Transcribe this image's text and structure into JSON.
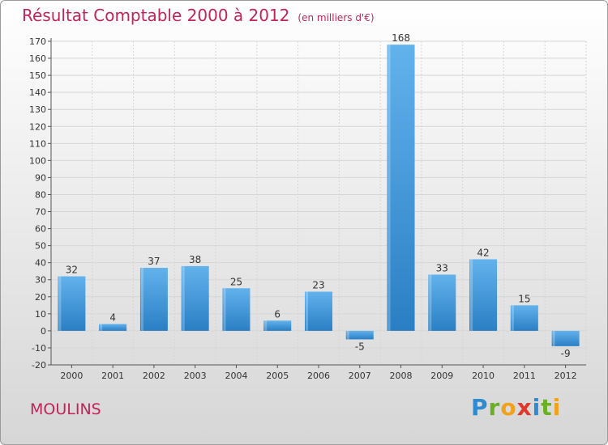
{
  "header": {
    "title": "Résultat Comptable 2000 à 2012",
    "unit_note": "(en milliers d'€)"
  },
  "footer": {
    "city": "MOULINS",
    "brand": "Proxiti",
    "brand_letters": [
      {
        "ch": "P",
        "color": "#2e8bd0"
      },
      {
        "ch": "r",
        "color": "#6ab023"
      },
      {
        "ch": "o",
        "color": "#f0a21a"
      },
      {
        "ch": "x",
        "color": "#e0392b"
      },
      {
        "ch": "i",
        "color": "#2e8bd0"
      },
      {
        "ch": "t",
        "color": "#6ab023"
      },
      {
        "ch": "i",
        "color": "#f0a21a"
      }
    ]
  },
  "colors": {
    "title": "#c0245a",
    "bar_light": "#62b2ec",
    "bar_dark": "#2a7fc4",
    "axis": "#555555",
    "grid": "#d6d6d6"
  },
  "chart_data": {
    "type": "bar",
    "title": "Résultat Comptable 2000 à 2012",
    "ylabel": "(en milliers d'€)",
    "xlabel": "",
    "categories": [
      "2000",
      "2001",
      "2002",
      "2003",
      "2004",
      "2005",
      "2006",
      "2007",
      "2008",
      "2009",
      "2010",
      "2011",
      "2012"
    ],
    "values": [
      32,
      4,
      37,
      38,
      25,
      6,
      23,
      -5,
      168,
      33,
      42,
      15,
      -9
    ],
    "ylim": [
      -20,
      170
    ],
    "yticks": [
      -20,
      -10,
      0,
      10,
      20,
      30,
      40,
      50,
      60,
      70,
      80,
      90,
      100,
      110,
      120,
      130,
      140,
      150,
      160,
      170
    ],
    "grid": true
  }
}
